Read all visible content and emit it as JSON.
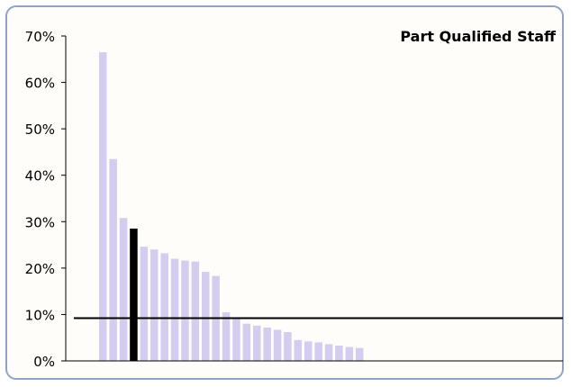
{
  "chart_data": {
    "type": "bar",
    "title": "Part Qualified Staff",
    "xlabel": "",
    "ylabel": "",
    "ylim": [
      0,
      70
    ],
    "yticks": [
      {
        "value": 0,
        "label": "0%"
      },
      {
        "value": 10,
        "label": "10%"
      },
      {
        "value": 20,
        "label": "20%"
      },
      {
        "value": 30,
        "label": "30%"
      },
      {
        "value": 40,
        "label": "40%"
      },
      {
        "value": 50,
        "label": "50%"
      },
      {
        "value": 60,
        "label": "60%"
      },
      {
        "value": 70,
        "label": "70%"
      }
    ],
    "values": [
      66.5,
      43.5,
      30.8,
      28.5,
      24.6,
      24.0,
      23.2,
      22.0,
      21.6,
      21.4,
      19.2,
      18.3,
      10.5,
      9.3,
      8.0,
      7.6,
      7.2,
      6.7,
      6.2,
      4.5,
      4.2,
      4.0,
      3.6,
      3.3,
      3.0,
      2.8
    ],
    "highlight_index": 3,
    "reference_line": 9.2,
    "grid": false,
    "legend": "none",
    "colors": {
      "bar": "#d4cdef",
      "highlight": "#000000",
      "reference_line": "#000000",
      "axis": "#000000",
      "border": "#8fa3c6"
    }
  }
}
